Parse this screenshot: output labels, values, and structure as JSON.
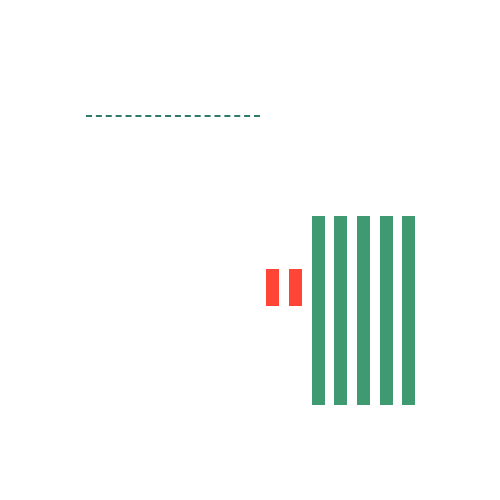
{
  "scene": {
    "colors": {
      "background": "#ffffff",
      "dash": "#2f7a69",
      "red": "#ff4535",
      "green": "#409a71"
    }
  }
}
